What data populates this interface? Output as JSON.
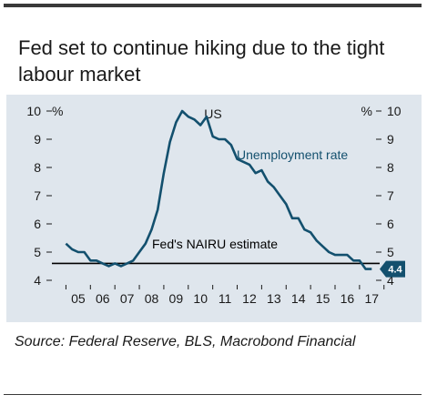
{
  "title": "Fed set to continue hiking due to the tight labour market",
  "source": "Source: Federal Reserve, BLS, Macrobond Financial",
  "colors": {
    "background_panel": "#dfe6ed",
    "series_line": "#13506e",
    "nairu_line": "#000000",
    "callout": "#13506e",
    "text": "#1a1a1a"
  },
  "chart_data": {
    "type": "line",
    "annotation_country": "US",
    "left_axis_unit": "%",
    "right_axis_unit": "%",
    "x_ticks": [
      "05",
      "06",
      "07",
      "08",
      "09",
      "10",
      "11",
      "12",
      "13",
      "14",
      "15",
      "16",
      "17"
    ],
    "xlim": [
      2004.5,
      2017.6
    ],
    "ylim": [
      4,
      10
    ],
    "y_ticks": [
      4,
      5,
      6,
      7,
      8,
      9,
      10
    ],
    "grid": false,
    "series": [
      {
        "name": "Unemployment rate",
        "x": [
          2005.0,
          2005.25,
          2005.5,
          2005.75,
          2006.0,
          2006.25,
          2006.5,
          2006.75,
          2007.0,
          2007.25,
          2007.5,
          2007.75,
          2008.0,
          2008.25,
          2008.5,
          2008.75,
          2009.0,
          2009.25,
          2009.5,
          2009.75,
          2010.0,
          2010.25,
          2010.5,
          2010.75,
          2011.0,
          2011.25,
          2011.5,
          2011.75,
          2012.0,
          2012.25,
          2012.5,
          2012.75,
          2013.0,
          2013.25,
          2013.5,
          2013.75,
          2014.0,
          2014.25,
          2014.5,
          2014.75,
          2015.0,
          2015.25,
          2015.5,
          2015.75,
          2016.0,
          2016.25,
          2016.5,
          2016.75,
          2017.0,
          2017.25,
          2017.5
        ],
        "values": [
          5.3,
          5.1,
          5.0,
          5.0,
          4.7,
          4.7,
          4.6,
          4.5,
          4.6,
          4.5,
          4.6,
          4.7,
          5.0,
          5.3,
          5.8,
          6.5,
          7.8,
          8.9,
          9.6,
          10.0,
          9.8,
          9.7,
          9.5,
          9.8,
          9.1,
          9.0,
          9.0,
          8.8,
          8.3,
          8.2,
          8.1,
          7.8,
          7.9,
          7.5,
          7.3,
          7.0,
          6.7,
          6.2,
          6.2,
          5.8,
          5.7,
          5.4,
          5.2,
          5.0,
          4.9,
          4.9,
          4.9,
          4.7,
          4.7,
          4.4,
          4.4
        ]
      }
    ],
    "nairu": {
      "label": "Fed's NAIRU estimate",
      "value": 4.6
    },
    "callout": {
      "value": 4.4,
      "label": "4.4"
    }
  }
}
